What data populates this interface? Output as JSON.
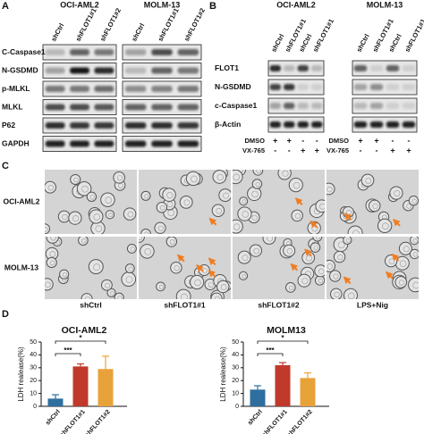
{
  "panel_a": {
    "letter": "A",
    "groups": [
      {
        "name": "OCI-AML2",
        "lanes": [
          "shCtrl",
          "shFLOT1#1",
          "shFLOT1#2"
        ]
      },
      {
        "name": "MOLM-13",
        "lanes": [
          "shCtrl",
          "shFLOT1#1",
          "shFLOT1#2"
        ]
      }
    ],
    "rows": [
      "C-Caspase1",
      "N-GSDMD",
      "p-MLKL",
      "MLKL",
      "P62",
      "GAPDH"
    ]
  },
  "panel_b": {
    "letter": "B",
    "groups": [
      {
        "name": "OCI-AML2",
        "lanes": [
          "shCtrl",
          "shFLOT1#1",
          "shCtrl",
          "shFLOT1#1"
        ]
      },
      {
        "name": "MOLM-13",
        "lanes": [
          "shCtrl",
          "shFLOT1#1",
          "shCtrl",
          "shFLOT1#1"
        ]
      }
    ],
    "rows": [
      "FLOT1",
      "N-GSDMD",
      "c-Caspase1",
      "β-Actin"
    ],
    "treatments": [
      {
        "name": "DMSO",
        "signs": [
          "+",
          "+",
          "-",
          "-"
        ]
      },
      {
        "name": "VX-765",
        "signs": [
          "-",
          "-",
          "+",
          "+"
        ]
      }
    ]
  },
  "panel_c": {
    "letter": "C",
    "rows": [
      "OCI-AML2",
      "MOLM-13"
    ],
    "columns": [
      "shCtrl",
      "shFLOT1#1",
      "shFLOT1#2",
      "LPS+Nig"
    ]
  },
  "panel_d": {
    "letter": "D"
  },
  "chart_data": [
    {
      "type": "bar",
      "title": "OCI-AML2",
      "y_label": "LDH realease(%)",
      "categories": [
        "shCtrl",
        "shFLOT1#1",
        "shFLOT1#2"
      ],
      "values": [
        6,
        31,
        29
      ],
      "errors": [
        3,
        2,
        10
      ],
      "colors": [
        "#2f6f9f",
        "#c0392b",
        "#e8a23a"
      ],
      "ylim": [
        0,
        50
      ],
      "yticks": [
        0,
        10,
        20,
        30,
        40,
        50
      ],
      "annotations": [
        "***",
        "*"
      ]
    },
    {
      "type": "bar",
      "title": "MOLM13",
      "y_label": "LDH realease(%)",
      "categories": [
        "shCtrl",
        "shFLOT1#1",
        "shFLOT1#2"
      ],
      "values": [
        13,
        32,
        22
      ],
      "errors": [
        3,
        2,
        4
      ],
      "colors": [
        "#2f6f9f",
        "#c0392b",
        "#e8a23a"
      ],
      "ylim": [
        0,
        50
      ],
      "yticks": [
        0,
        10,
        20,
        30,
        40,
        50
      ],
      "annotations": [
        "***",
        "*"
      ]
    }
  ]
}
